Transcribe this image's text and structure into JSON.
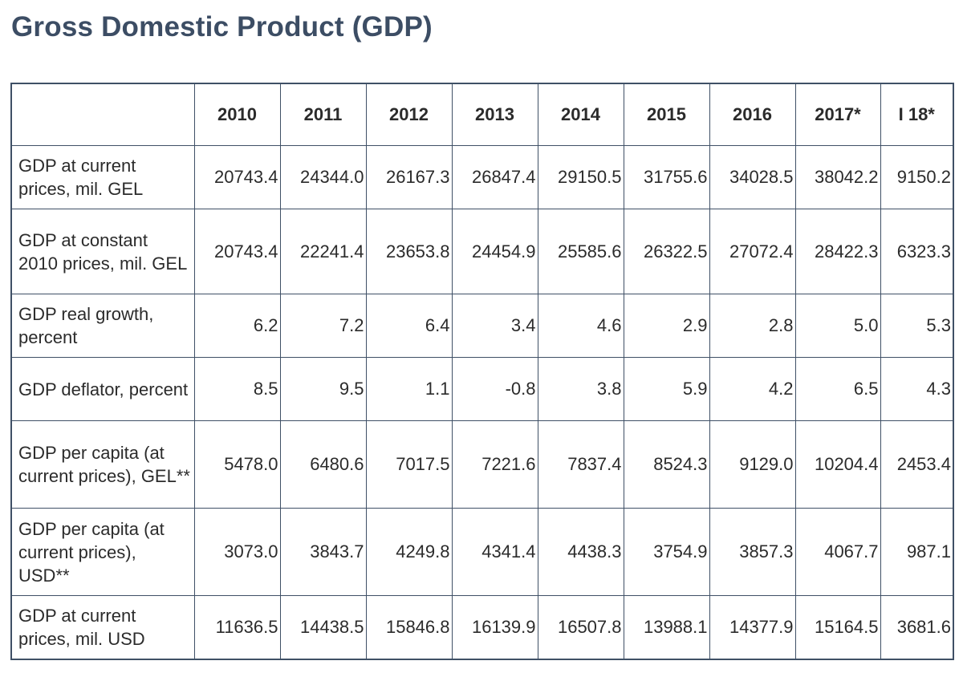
{
  "title": "Gross Domestic Product (GDP)",
  "table": {
    "corner": "",
    "headers": [
      "2010",
      "2011",
      "2012",
      "2013",
      "2014",
      "2015",
      "2016",
      "2017*",
      "I 18*"
    ],
    "rows": [
      {
        "label": "GDP at current prices, mil. GEL",
        "values": [
          "20743.4",
          "24344.0",
          "26167.3",
          "26847.4",
          "29150.5",
          "31755.6",
          "34028.5",
          "38042.2",
          "9150.2"
        ]
      },
      {
        "label": "GDP at constant 2010 prices, mil. GEL",
        "values": [
          "20743.4",
          "22241.4",
          "23653.8",
          "24454.9",
          "25585.6",
          "26322.5",
          "27072.4",
          "28422.3",
          "6323.3"
        ]
      },
      {
        "label": "GDP real growth, percent",
        "values": [
          "6.2",
          "7.2",
          "6.4",
          "3.4",
          "4.6",
          "2.9",
          "2.8",
          "5.0",
          "5.3"
        ]
      },
      {
        "label": "GDP deflator, percent",
        "values": [
          "8.5",
          "9.5",
          "1.1",
          "-0.8",
          "3.8",
          "5.9",
          "4.2",
          "6.5",
          "4.3"
        ]
      },
      {
        "label": "GDP per capita (at current prices), GEL**",
        "values": [
          "5478.0",
          "6480.6",
          "7017.5",
          "7221.6",
          "7837.4",
          "8524.3",
          "9129.0",
          "10204.4",
          "2453.4"
        ]
      },
      {
        "label": "GDP per capita (at current prices), USD**",
        "values": [
          "3073.0",
          "3843.7",
          "4249.8",
          "4341.4",
          "4438.3",
          "3754.9",
          "3857.3",
          "4067.7",
          "987.1"
        ]
      },
      {
        "label": "GDP at current prices, mil. USD",
        "values": [
          "11636.5",
          "14438.5",
          "15846.8",
          "16139.9",
          "16507.8",
          "13988.1",
          "14377.9",
          "15164.5",
          "3681.6"
        ]
      }
    ]
  }
}
